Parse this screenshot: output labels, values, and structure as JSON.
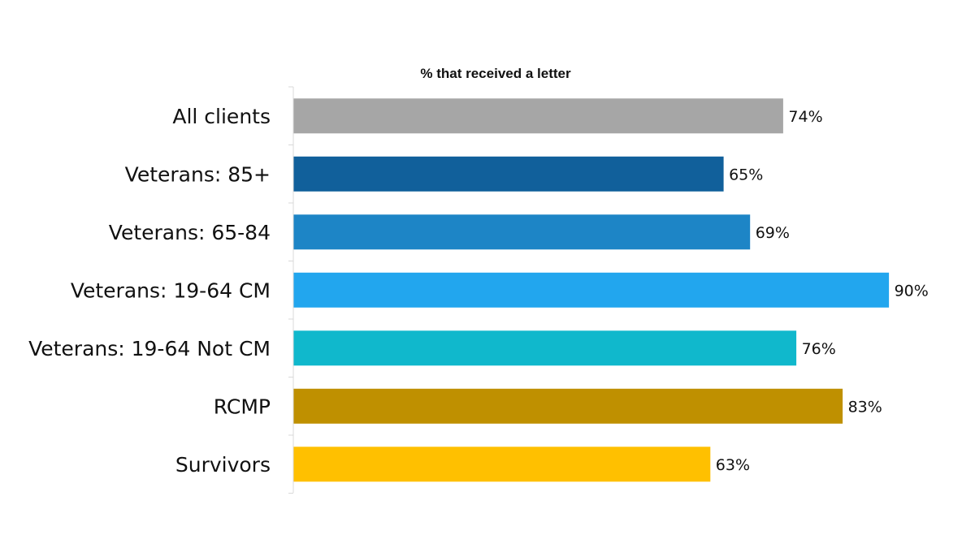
{
  "chart_data": {
    "type": "bar",
    "orientation": "horizontal",
    "title": "% that received a letter",
    "xlabel": "",
    "ylabel": "",
    "xlim": [
      0,
      100
    ],
    "grid": false,
    "legend": "none",
    "value_suffix": "%",
    "categories": [
      "All clients",
      "Veterans: 85+",
      "Veterans: 65-84",
      "Veterans: 19-64 CM",
      "Veterans: 19-64 Not CM",
      "RCMP",
      "Survivors"
    ],
    "values": [
      74,
      65,
      69,
      90,
      76,
      83,
      63
    ],
    "colors": [
      "#A6A6A6",
      "#11609B",
      "#1D85C6",
      "#22A6EE",
      "#10B8CC",
      "#BF9000",
      "#FFC000"
    ]
  }
}
